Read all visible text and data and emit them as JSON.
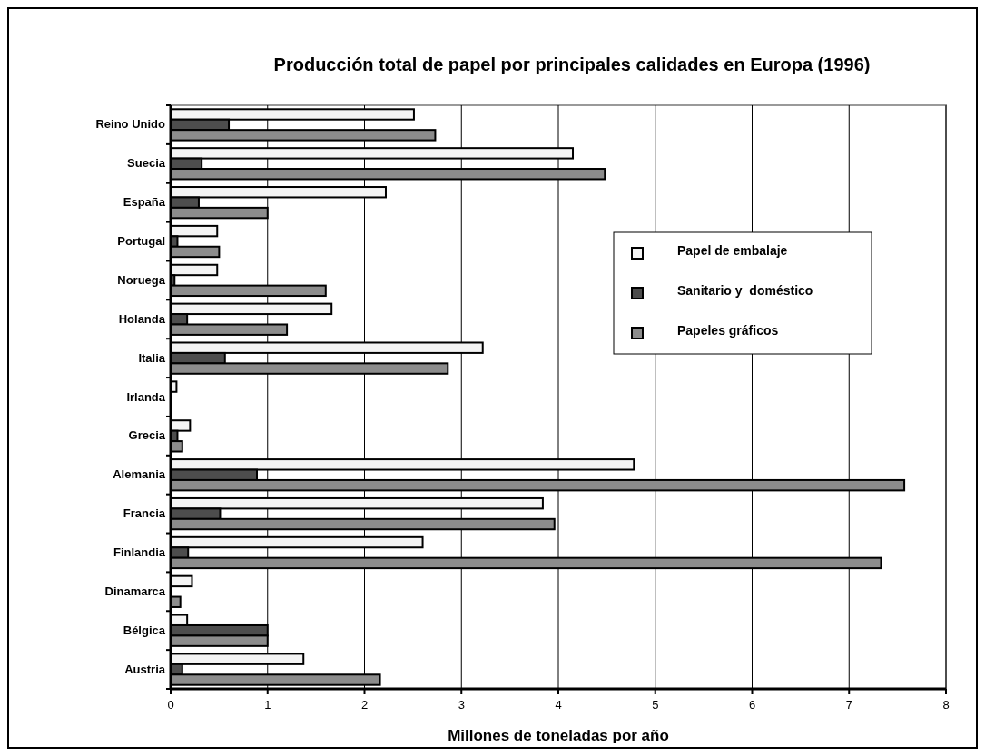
{
  "chart_data": {
    "type": "bar",
    "orientation": "horizontal",
    "title": "Producción total de papel por principales calidades en Europa (1996)",
    "xlabel": "Millones de toneladas por año",
    "categories": [
      "Reino Unido",
      "Suecia",
      "España",
      "Portugal",
      "Noruega",
      "Holanda",
      "Italia",
      "Irlanda",
      "Grecia",
      "Alemania",
      "Francia",
      "Finlandia",
      "Dinamarca",
      "Bélgica",
      "Austria"
    ],
    "series": [
      {
        "name": "Papel de embalaje",
        "color": "#f4f4f4",
        "values": [
          2.51,
          4.15,
          2.22,
          0.48,
          0.48,
          1.66,
          3.22,
          0.06,
          0.2,
          4.78,
          3.84,
          2.6,
          0.22,
          0.17,
          1.37
        ]
      },
      {
        "name": "Sanitario y  doméstico",
        "color": "#4d4d4d",
        "values": [
          0.6,
          0.32,
          0.29,
          0.07,
          0.04,
          0.17,
          0.56,
          null,
          0.07,
          0.89,
          0.51,
          0.18,
          null,
          1.0,
          0.12
        ]
      },
      {
        "name": "Papeles gráficos",
        "color": "#8c8c8c",
        "values": [
          2.73,
          4.48,
          1.0,
          0.5,
          1.6,
          1.2,
          2.86,
          null,
          0.12,
          7.57,
          3.96,
          7.33,
          0.1,
          1.0,
          2.16
        ]
      }
    ],
    "xlim": [
      0,
      8
    ],
    "xticks": [
      0,
      1,
      2,
      3,
      4,
      5,
      6,
      7,
      8
    ],
    "grid": "x",
    "legend": "right"
  }
}
